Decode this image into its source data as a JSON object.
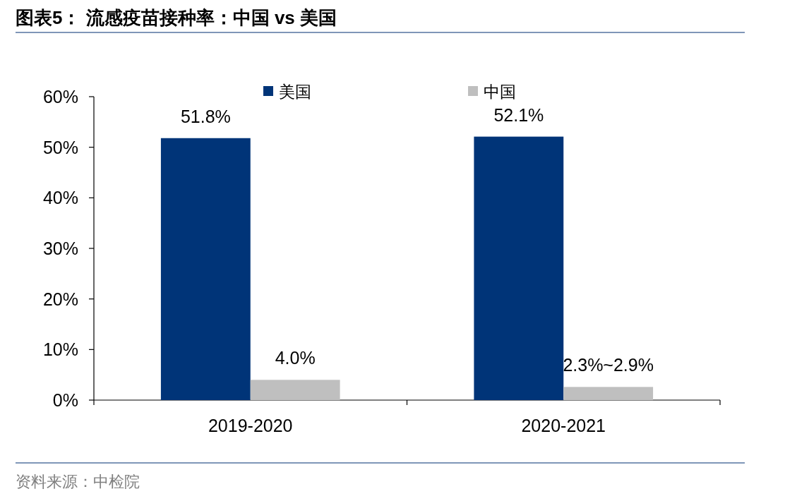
{
  "chart_data": {
    "type": "bar",
    "title": "图表5：  流感疫苗接种率：中国 vs 美国",
    "categories": [
      "2019-2020",
      "2020-2021"
    ],
    "series": [
      {
        "name": "美国",
        "color": "#003478",
        "values": [
          51.8,
          52.1
        ],
        "value_labels": [
          "51.8%",
          "52.1%"
        ]
      },
      {
        "name": "中国",
        "color": "#bfbfbf",
        "values": [
          4.0,
          2.6
        ],
        "value_labels": [
          "4.0%",
          null
        ]
      }
    ],
    "ylim": [
      0,
      60
    ],
    "yticks": [
      {
        "value": 0,
        "label": "0%"
      },
      {
        "value": 10,
        "label": "10%"
      },
      {
        "value": 20,
        "label": "20%"
      },
      {
        "value": 30,
        "label": "30%"
      },
      {
        "value": 40,
        "label": "40%"
      },
      {
        "value": 50,
        "label": "50%"
      },
      {
        "value": 60,
        "label": "60%"
      }
    ],
    "grid": false,
    "legend": "top",
    "annotations": [
      {
        "text": "2.3%~2.9%",
        "x": "2020-2021",
        "y": 2.6
      },
      "资料来源：中检院"
    ]
  }
}
